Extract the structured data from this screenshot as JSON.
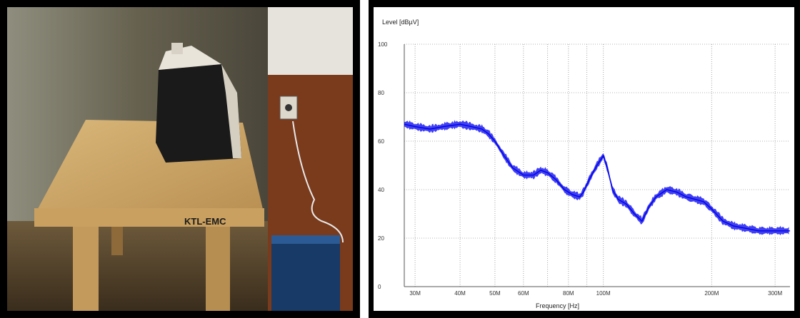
{
  "photo": {
    "table_label": "KTL-EMC"
  },
  "chart_data": {
    "type": "line",
    "title": "",
    "ylabel": "Level [dBµV]",
    "xlabel": "Frequency [Hz]",
    "x_scale": "log",
    "xlim_mhz": [
      28,
      330
    ],
    "ylim": [
      0,
      100
    ],
    "y_ticks": [
      0,
      20,
      40,
      60,
      80,
      100
    ],
    "x_ticks": [
      {
        "mhz": 30,
        "label": "30M"
      },
      {
        "mhz": 40,
        "label": "40M"
      },
      {
        "mhz": 50,
        "label": "50M"
      },
      {
        "mhz": 60,
        "label": "60M"
      },
      {
        "mhz": 80,
        "label": "80M"
      },
      {
        "mhz": 100,
        "label": "100M"
      },
      {
        "mhz": 200,
        "label": "200M"
      },
      {
        "mhz": 300,
        "label": "300M"
      }
    ],
    "x_minor_gridlines_mhz": [
      70,
      90
    ],
    "grid": true,
    "series_color": "#0000ee",
    "series": [
      {
        "x_mhz": [
          28,
          30,
          33,
          36,
          40,
          43,
          46,
          48,
          50,
          53,
          56,
          60,
          64,
          67,
          70,
          74,
          78,
          82,
          86,
          88,
          92,
          96,
          100,
          103,
          106,
          110,
          116,
          122,
          128,
          134,
          140,
          150,
          160,
          170,
          180,
          190,
          200,
          215,
          230,
          250,
          270,
          300,
          330
        ],
        "y_dbuv": [
          67,
          66,
          65,
          66,
          67,
          66,
          65,
          63,
          60,
          54,
          49,
          46,
          46,
          48,
          47,
          44,
          40,
          38,
          37,
          39,
          45,
          50,
          54,
          48,
          40,
          36,
          34,
          30,
          27,
          33,
          37,
          40,
          39,
          37,
          36,
          35,
          32,
          27,
          25,
          24,
          23,
          23,
          23
        ]
      }
    ]
  }
}
